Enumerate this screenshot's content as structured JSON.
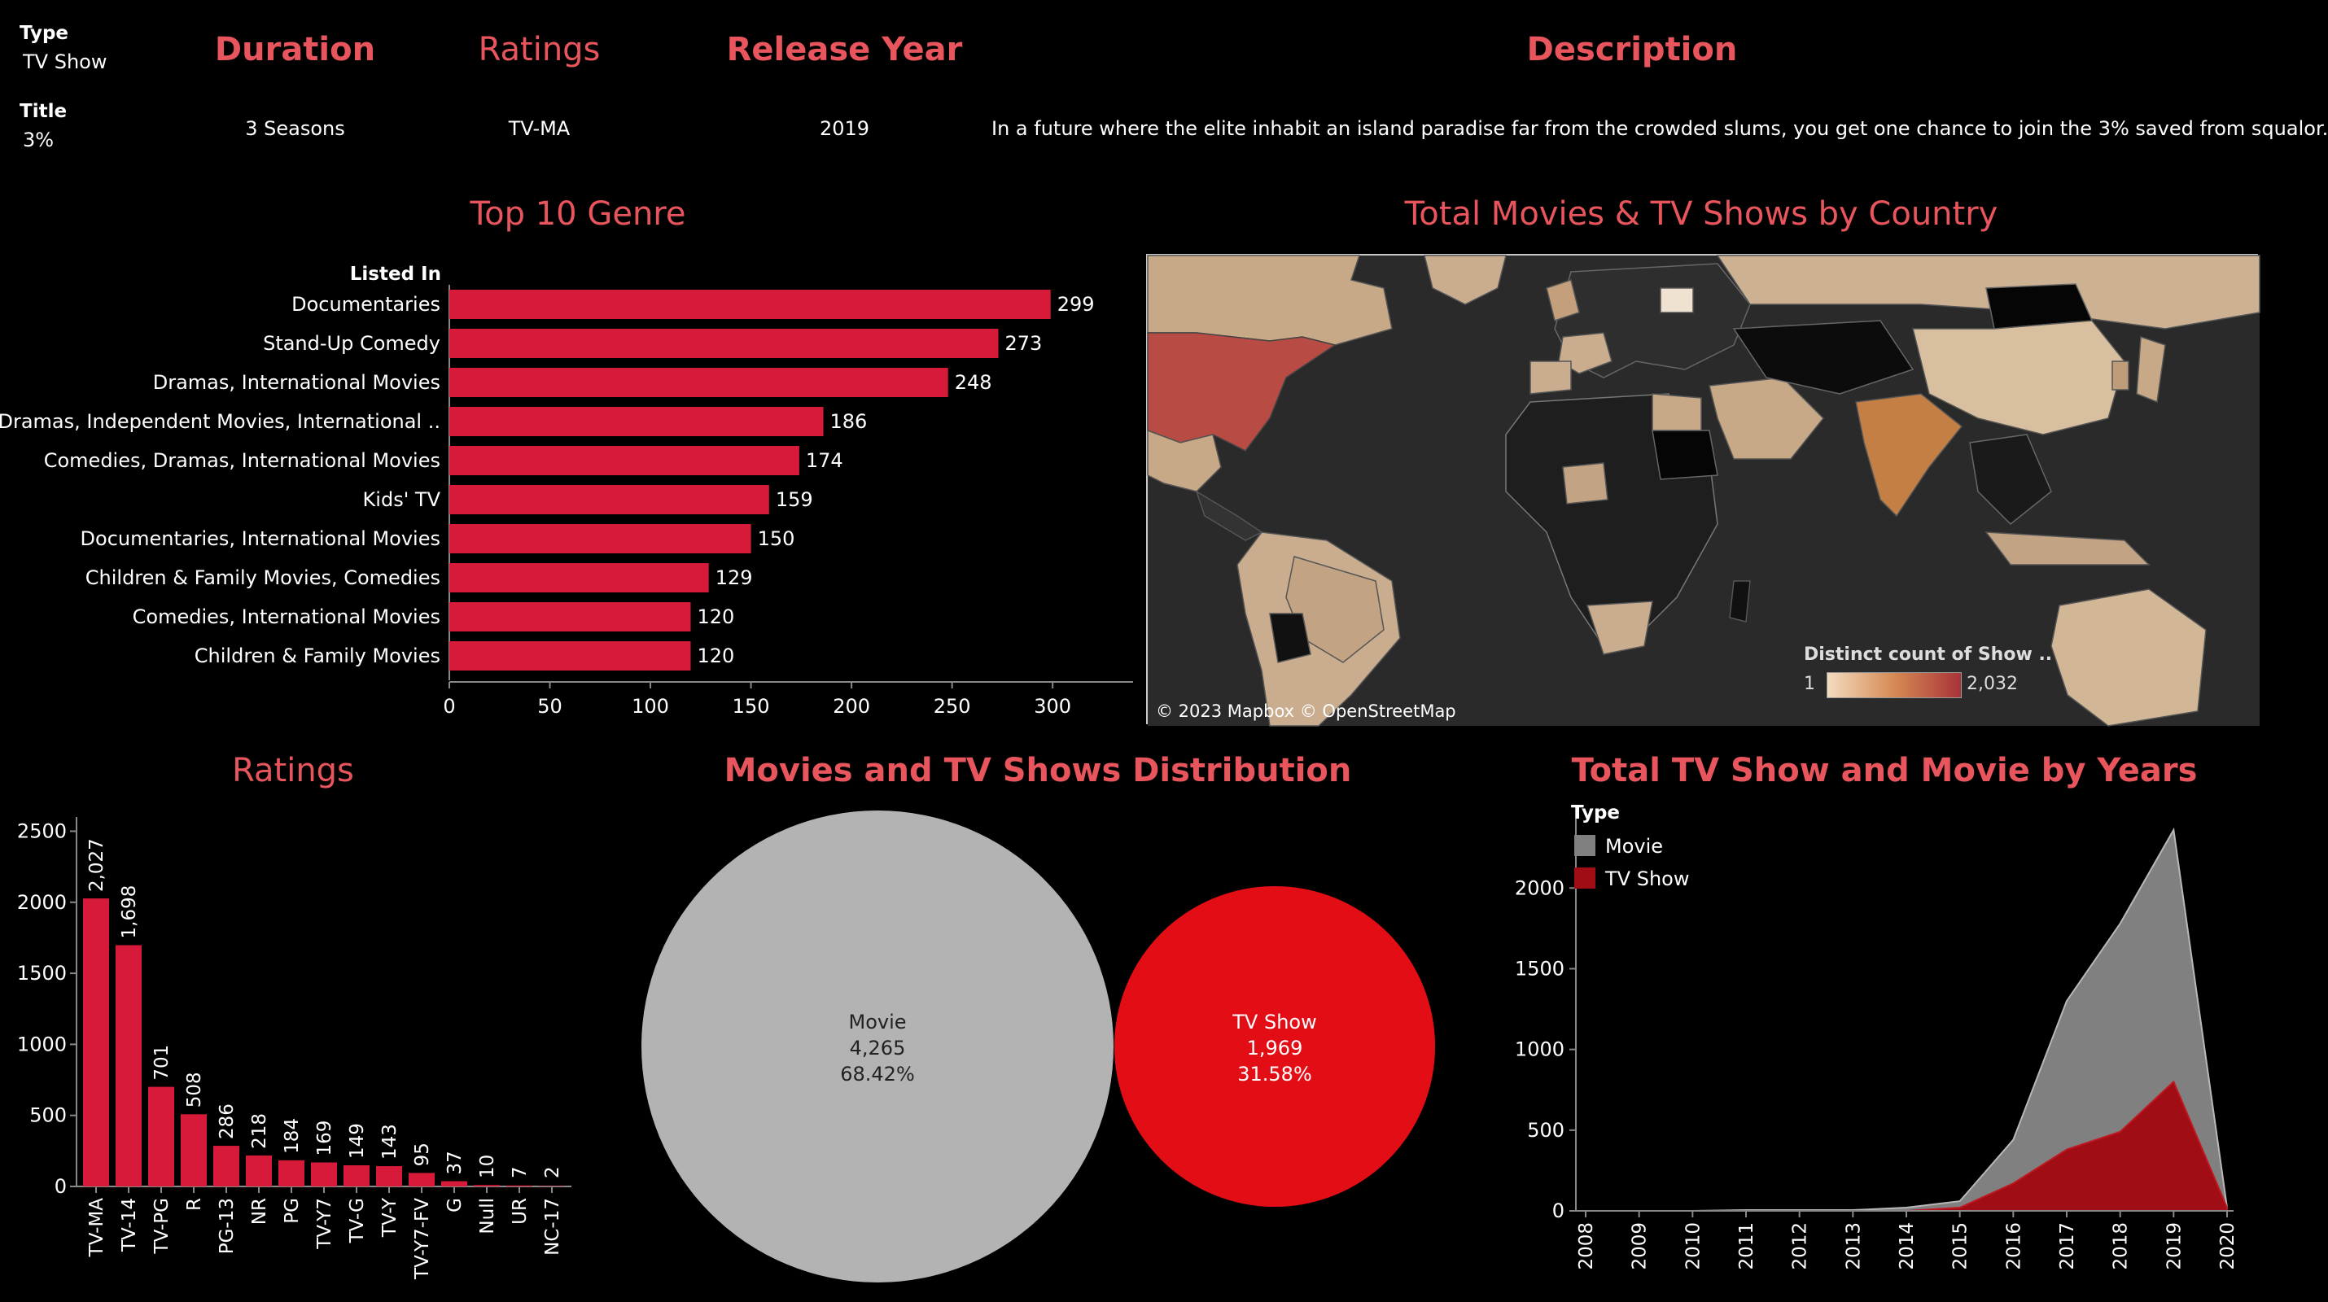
{
  "header": {
    "type_label": "Type",
    "type_value": "TV Show",
    "title_label": "Title",
    "title_value": "3%",
    "duration_label": "Duration",
    "duration_value": "3 Seasons",
    "ratings_label": "Ratings",
    "ratings_value": "TV-MA",
    "release_label": "Release Year",
    "release_value": "2019",
    "description_label": "Description",
    "description_value": "In a future where the elite inhabit an island paradise far from the crowded slums, you get one chance to join the 3% saved from squalor."
  },
  "colors": {
    "accent": "#e8555c",
    "bar": "#d7193a",
    "movie": "#b3b3b3",
    "tvshow": "#e30d16",
    "area_movie": "#808080",
    "area_tv": "#a00d14"
  },
  "genre_chart": {
    "title": "Top 10 Genre",
    "axis_header": "Listed In"
  },
  "map": {
    "title": "Total Movies & TV Shows by Country",
    "attribution": "© 2023 Mapbox © OpenStreetMap",
    "legend_title": "Distinct count of Show ..",
    "legend_min": "1",
    "legend_max": "2,032"
  },
  "ratings_chart": {
    "title": "Ratings"
  },
  "dist_chart": {
    "title": "Movies and TV Shows Distribution"
  },
  "years_chart": {
    "title": "Total TV Show and Movie by Years",
    "legend_title": "Type"
  },
  "chart_data": [
    {
      "type": "bar",
      "orientation": "horizontal",
      "title": "Top 10 Genre",
      "ylabel": "Listed In",
      "categories": [
        "Documentaries",
        "Stand-Up Comedy",
        "Dramas, International Movies",
        "Dramas, Independent Movies, International ..",
        "Comedies, Dramas, International Movies",
        "Kids' TV",
        "Documentaries, International Movies",
        "Children & Family Movies, Comedies",
        "Comedies, International Movies",
        "Children & Family Movies"
      ],
      "values": [
        299,
        273,
        248,
        186,
        174,
        159,
        150,
        129,
        120,
        120
      ],
      "xticks": [
        0,
        50,
        100,
        150,
        200,
        250,
        300
      ],
      "xlim": [
        0,
        340
      ]
    },
    {
      "type": "bar",
      "title": "Ratings",
      "categories": [
        "TV-MA",
        "TV-14",
        "TV-PG",
        "R",
        "PG-13",
        "NR",
        "PG",
        "TV-Y7",
        "TV-G",
        "TV-Y",
        "TV-Y7-FV",
        "G",
        "Null",
        "UR",
        "NC-17"
      ],
      "values": [
        2027,
        1698,
        701,
        508,
        286,
        218,
        184,
        169,
        149,
        143,
        95,
        37,
        10,
        7,
        2
      ],
      "value_labels": [
        "2,027",
        "1,698",
        "701",
        "508",
        "286",
        "218",
        "184",
        "169",
        "149",
        "143",
        "95",
        "37",
        "10",
        "7",
        "2"
      ],
      "yticks": [
        0,
        500,
        1000,
        1500,
        2000,
        2500
      ],
      "ylim": [
        0,
        2600
      ]
    },
    {
      "type": "pie",
      "title": "Movies and TV Shows Distribution",
      "categories": [
        "Movie",
        "TV Show"
      ],
      "values": [
        4265,
        1969
      ],
      "value_labels": [
        "4,265",
        "1,969"
      ],
      "percent_labels": [
        "68.42%",
        "31.58%"
      ]
    },
    {
      "type": "area",
      "title": "Total TV Show and Movie by Years",
      "legend_title": "Type",
      "x": [
        "2008",
        "2009",
        "2010",
        "2011",
        "2012",
        "2013",
        "2014",
        "2015",
        "2016",
        "2017",
        "2018",
        "2019",
        "2020"
      ],
      "series": [
        {
          "name": "Movie",
          "values": [
            0,
            0,
            0,
            5,
            5,
            5,
            20,
            60,
            440,
            1300,
            1780,
            2360,
            20
          ]
        },
        {
          "name": "TV Show",
          "values": [
            0,
            0,
            0,
            0,
            0,
            0,
            0,
            20,
            170,
            380,
            490,
            800,
            20
          ]
        }
      ],
      "yticks": [
        0,
        500,
        1000,
        1500,
        2000
      ],
      "ylim": [
        0,
        2450
      ]
    }
  ]
}
